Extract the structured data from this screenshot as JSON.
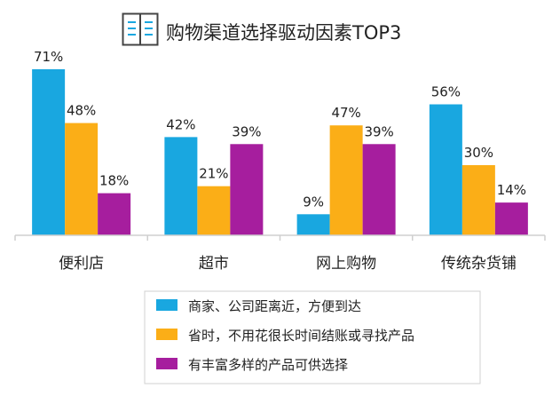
{
  "chart_data": {
    "type": "bar",
    "title": "购物渠道选择驱动因素TOP3",
    "categories": [
      "便利店",
      "超市",
      "网上购物",
      "传统杂货铺"
    ],
    "series": [
      {
        "name": "商家、公司距离近，方便到达",
        "color": "#19A7E0",
        "values": [
          71,
          42,
          9,
          56
        ],
        "labels": [
          "71%",
          "42%",
          "9%",
          "56%"
        ]
      },
      {
        "name": "省时，不用花很长时间结账或寻找产品",
        "color": "#FBAE17",
        "values": [
          48,
          21,
          47,
          30
        ],
        "labels": [
          "48%",
          "21%",
          "47%",
          "30%"
        ]
      },
      {
        "name": "有丰富多样的产品可供选择",
        "color": "#A61E9E",
        "values": [
          18,
          39,
          39,
          14
        ],
        "labels": [
          "18%",
          "39%",
          "39%",
          "14%"
        ]
      }
    ],
    "ylim": [
      0,
      71
    ],
    "grid": false,
    "legend": "bottom"
  }
}
